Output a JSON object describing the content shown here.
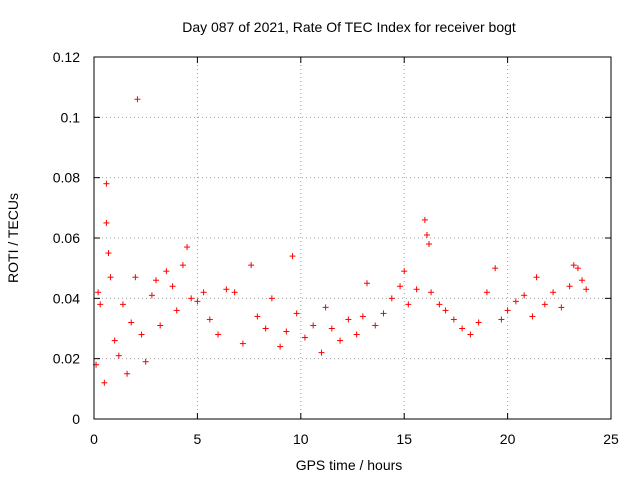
{
  "chart_data": {
    "type": "scatter",
    "title": "Day 087 of 2021, Rate Of TEC Index for receiver bogt",
    "xlabel": "GPS time / hours",
    "ylabel": "ROTI / TECUs",
    "xlim": [
      0,
      25
    ],
    "ylim": [
      0,
      0.12
    ],
    "x_ticks": [
      0,
      5,
      10,
      15,
      20,
      25
    ],
    "y_ticks": [
      0,
      0.02,
      0.04,
      0.06,
      0.08,
      0.1,
      0.12
    ],
    "x_tick_labels": [
      "0",
      "5",
      "10",
      "15",
      "20",
      "25"
    ],
    "y_tick_labels": [
      "0",
      "0.02",
      "0.04",
      "0.06",
      "0.08",
      "0.1",
      "0.12"
    ],
    "grid": true,
    "marker": "plus",
    "color": "#ff0000",
    "series": [
      {
        "values": [
          [
            0.1,
            0.018
          ],
          [
            0.2,
            0.042
          ],
          [
            0.3,
            0.038
          ],
          [
            0.5,
            0.012
          ],
          [
            0.6,
            0.078
          ],
          [
            0.6,
            0.065
          ],
          [
            0.7,
            0.055
          ],
          [
            0.8,
            0.047
          ],
          [
            1.0,
            0.026
          ],
          [
            1.2,
            0.021
          ],
          [
            1.4,
            0.038
          ],
          [
            1.6,
            0.015
          ],
          [
            1.8,
            0.032
          ],
          [
            2.0,
            0.047
          ],
          [
            2.1,
            0.106
          ],
          [
            2.3,
            0.028
          ],
          [
            2.5,
            0.019
          ],
          [
            2.8,
            0.041
          ],
          [
            3.0,
            0.046
          ],
          [
            3.2,
            0.031
          ],
          [
            3.5,
            0.049
          ],
          [
            3.8,
            0.044
          ],
          [
            4.0,
            0.036
          ],
          [
            4.3,
            0.051
          ],
          [
            4.5,
            0.057
          ],
          [
            4.7,
            0.04
          ],
          [
            5.0,
            0.039
          ],
          [
            5.3,
            0.042
          ],
          [
            5.6,
            0.033
          ],
          [
            6.0,
            0.028
          ],
          [
            6.4,
            0.043
          ],
          [
            6.8,
            0.042
          ],
          [
            7.2,
            0.025
          ],
          [
            7.6,
            0.051
          ],
          [
            7.9,
            0.034
          ],
          [
            8.3,
            0.03
          ],
          [
            8.6,
            0.04
          ],
          [
            9.0,
            0.024
          ],
          [
            9.3,
            0.029
          ],
          [
            9.6,
            0.054
          ],
          [
            9.8,
            0.035
          ],
          [
            10.2,
            0.027
          ],
          [
            10.6,
            0.031
          ],
          [
            11.0,
            0.022
          ],
          [
            11.2,
            0.037
          ],
          [
            11.5,
            0.03
          ],
          [
            11.9,
            0.026
          ],
          [
            12.3,
            0.033
          ],
          [
            12.7,
            0.028
          ],
          [
            13.0,
            0.034
          ],
          [
            13.2,
            0.045
          ],
          [
            13.6,
            0.031
          ],
          [
            14.0,
            0.035
          ],
          [
            14.4,
            0.04
          ],
          [
            14.8,
            0.044
          ],
          [
            15.0,
            0.049
          ],
          [
            15.2,
            0.038
          ],
          [
            15.6,
            0.043
          ],
          [
            16.0,
            0.066
          ],
          [
            16.1,
            0.061
          ],
          [
            16.2,
            0.058
          ],
          [
            16.3,
            0.042
          ],
          [
            16.7,
            0.038
          ],
          [
            17.0,
            0.036
          ],
          [
            17.4,
            0.033
          ],
          [
            17.8,
            0.03
          ],
          [
            18.2,
            0.028
          ],
          [
            18.6,
            0.032
          ],
          [
            19.0,
            0.042
          ],
          [
            19.4,
            0.05
          ],
          [
            19.7,
            0.033
          ],
          [
            20.0,
            0.036
          ],
          [
            20.4,
            0.039
          ],
          [
            20.8,
            0.041
          ],
          [
            21.2,
            0.034
          ],
          [
            21.4,
            0.047
          ],
          [
            21.8,
            0.038
          ],
          [
            22.2,
            0.042
          ],
          [
            22.6,
            0.037
          ],
          [
            23.0,
            0.044
          ],
          [
            23.2,
            0.051
          ],
          [
            23.4,
            0.05
          ],
          [
            23.6,
            0.046
          ],
          [
            23.8,
            0.043
          ]
        ]
      }
    ]
  }
}
